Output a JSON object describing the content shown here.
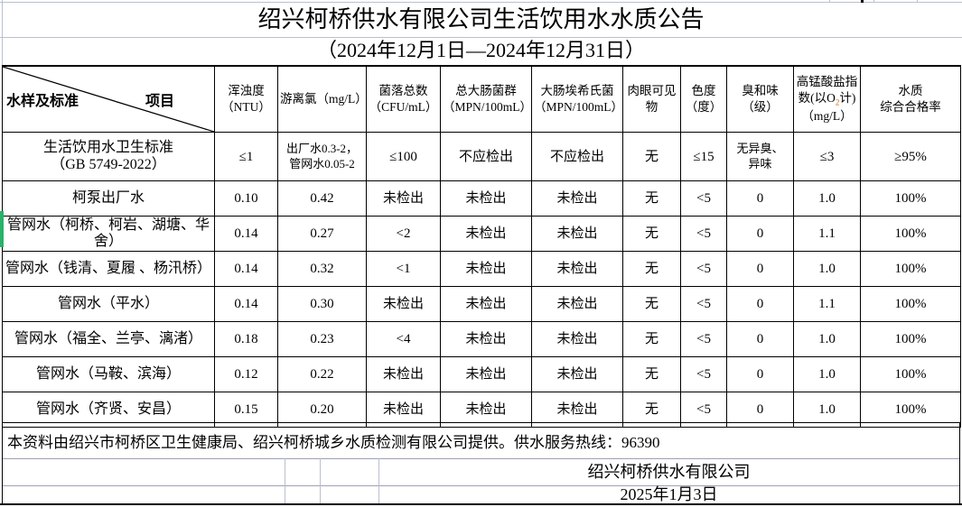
{
  "page": {
    "title": "绍兴柯桥供水有限公司生活饮用水水质公告",
    "subtitle": "（2024年12月1日—2024年12月31日）"
  },
  "table": {
    "corner": {
      "project_label": "项目",
      "sample_label": "水样及标准"
    },
    "headers": [
      "浑浊度\n（NTU）",
      "游离氯（mg/L）",
      "菌落总数\n（CFU/mL）",
      "总大肠菌群\n（MPN/100mL）",
      "大肠埃希氏菌\n（MPN/100mL）",
      "肉眼可见物",
      "色度\n（度）",
      "臭和味\n（级）",
      "高锰酸盐指\n数(以O₂计)\n（mg/L）",
      "水质\n综合合格率"
    ],
    "rows": [
      {
        "label": "生活饮用水卫生标准\n（GB 5749-2022）",
        "type": "standard",
        "values": [
          "≤1",
          "出厂水0.3-2，\n管网水0.05-2",
          "≤100",
          "不应检出",
          "不应检出",
          "无",
          "≤15",
          "无异臭、\n异味",
          "≤3",
          "≥95%"
        ]
      },
      {
        "label": "柯泵出厂水",
        "type": "data",
        "values": [
          "0.10",
          "0.42",
          "未检出",
          "未检出",
          "未检出",
          "无",
          "<5",
          "0",
          "1.0",
          "100%"
        ]
      },
      {
        "label": "管网水（柯桥、柯岩、湖塘、华舍）",
        "type": "data",
        "values": [
          "0.14",
          "0.27",
          "<2",
          "未检出",
          "未检出",
          "无",
          "<5",
          "0",
          "1.1",
          "100%"
        ]
      },
      {
        "label": "管网水（钱清、夏履 、杨汛桥）",
        "type": "data",
        "values": [
          "0.14",
          "0.32",
          "<1",
          "未检出",
          "未检出",
          "无",
          "<5",
          "0",
          "1.0",
          "100%"
        ]
      },
      {
        "label": "管网水（平水）",
        "type": "data",
        "values": [
          "0.14",
          "0.30",
          "未检出",
          "未检出",
          "未检出",
          "无",
          "<5",
          "0",
          "1.1",
          "100%"
        ]
      },
      {
        "label": "管网水（福全、兰亭、漓渚）",
        "type": "data",
        "values": [
          "0.18",
          "0.23",
          "<4",
          "未检出",
          "未检出",
          "无",
          "<5",
          "0",
          "1.0",
          "100%"
        ]
      },
      {
        "label": "管网水（马鞍、滨海）",
        "type": "data",
        "values": [
          "0.12",
          "0.22",
          "未检出",
          "未检出",
          "未检出",
          "无",
          "<5",
          "0",
          "1.0",
          "100%"
        ]
      },
      {
        "label": "管网水（齐贤、安昌）",
        "type": "data",
        "values": [
          "0.15",
          "0.20",
          "未检出",
          "未检出",
          "未检出",
          "无",
          "<5",
          "0",
          "1.0",
          "100%"
        ]
      }
    ]
  },
  "footer": {
    "note": "本资料由绍兴市柯桥区卫生健康局、绍兴柯桥城乡水质检测有限公司提供。供水服务热线：96390",
    "company": "绍兴柯桥供水有限公司",
    "date": "2025年1月3日"
  },
  "colors": {
    "border": "#000000",
    "gridline": "#b9c0cf",
    "row_marker_green": "#28b26b",
    "o2_subscript_orange": "#d4690f"
  }
}
